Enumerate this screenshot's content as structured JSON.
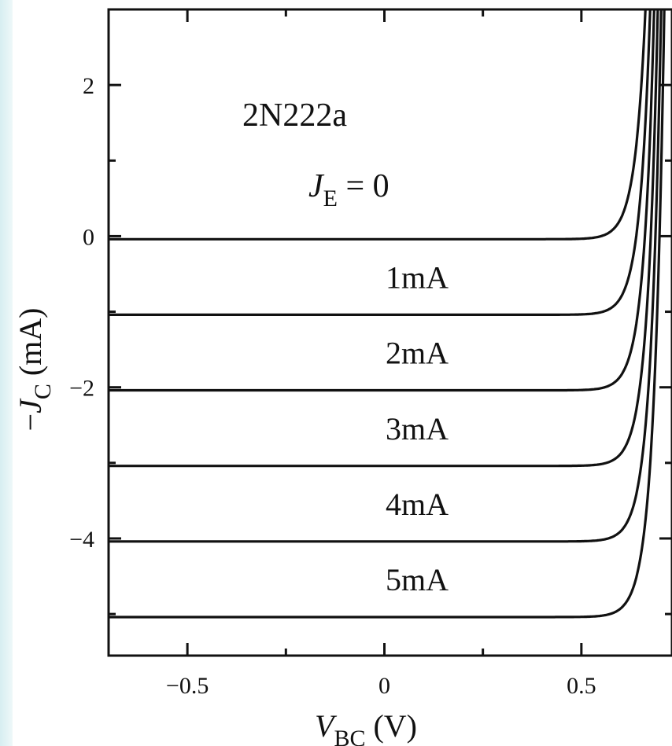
{
  "chart_data": {
    "type": "line",
    "title": "2N222a",
    "subtitle": {
      "symbol": "J",
      "sub": "E",
      "rest": " = 0"
    },
    "xlabel": {
      "symbol": "V",
      "sub": "BC",
      "rest": " (V)"
    },
    "ylabel": {
      "prefix": "−",
      "symbol": "J",
      "sub": "C",
      "rest": " (mA)"
    },
    "xlim": [
      -0.7,
      0.73
    ],
    "ylim": [
      -5.55,
      3.0
    ],
    "xticks": [
      {
        "value": -0.5,
        "label": "−0.5"
      },
      {
        "value": 0,
        "label": "0"
      },
      {
        "value": 0.5,
        "label": "0.5"
      }
    ],
    "yticks": [
      {
        "value": -4,
        "label": "−4"
      },
      {
        "value": -2,
        "label": "−2"
      },
      {
        "value": 0,
        "label": "0"
      },
      {
        "value": 2,
        "label": "2"
      }
    ],
    "grid": false,
    "diode": {
      "knee_v": 0.55,
      "vt": 0.026
    },
    "series": [
      {
        "name": "",
        "base": 0,
        "label": ""
      },
      {
        "name": "1mA",
        "base": -1,
        "label": "1mA"
      },
      {
        "name": "2mA",
        "base": -2,
        "label": "2mA"
      },
      {
        "name": "3mA",
        "base": -3,
        "label": "3mA"
      },
      {
        "name": "4mA",
        "base": -4,
        "label": "4mA"
      },
      {
        "name": "5mA",
        "base": -5,
        "label": "5mA"
      }
    ]
  }
}
